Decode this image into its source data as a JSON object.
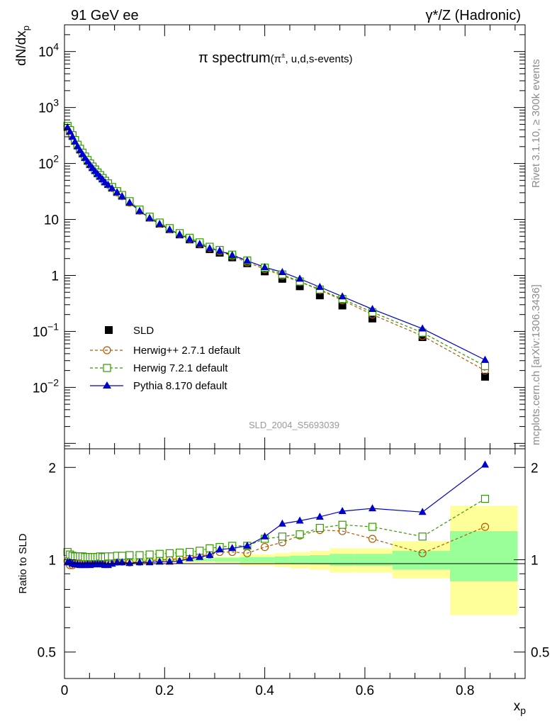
{
  "header": {
    "left": "91 GeV ee",
    "right_prefix": "γ*/Z",
    "right_suffix": "(Hadronic)"
  },
  "side_labels": {
    "rivet": "Rivet 3.1.10, ≥ 300k events",
    "mcplots": "mcplots.cern.ch [arXiv:1306.3436]"
  },
  "plot_title": {
    "main": "π spectrum",
    "sub": "(π±, u,d,s-events)"
  },
  "analysis_id": "SLD_2004_S5693039",
  "colors": {
    "data": "#000000",
    "herwigpp": "#b35900",
    "herwig7": "#339900",
    "pythia": "#0000cc",
    "band_outer": "#ffff99",
    "band_inner": "#99ff99"
  },
  "chart_data": [
    {
      "type": "scatter",
      "panel": "main",
      "ylabel": "dN/dxp",
      "yscale": "log",
      "xlim": [
        0,
        0.92
      ],
      "ylim": [
        0.0008,
        30000
      ],
      "y_ticks": [
        "10^-2",
        "10^-1",
        "1",
        "10",
        "10^2",
        "10^3",
        "10^4"
      ],
      "legend_placement": "lower-left",
      "legend": [
        "SLD",
        "Herwig++ 2.7.1 default",
        "Herwig 7.2.1 default",
        "Pythia 8.170 default"
      ],
      "x": [
        0.006,
        0.011,
        0.016,
        0.021,
        0.026,
        0.031,
        0.036,
        0.041,
        0.046,
        0.051,
        0.056,
        0.061,
        0.066,
        0.071,
        0.076,
        0.081,
        0.087,
        0.095,
        0.105,
        0.115,
        0.13,
        0.15,
        0.17,
        0.19,
        0.21,
        0.23,
        0.25,
        0.27,
        0.29,
        0.31,
        0.335,
        0.365,
        0.4,
        0.435,
        0.47,
        0.51,
        0.555,
        0.615,
        0.715,
        0.84
      ],
      "series": [
        {
          "name": "SLD",
          "values": [
            450,
            380,
            310,
            255,
            210,
            178,
            152,
            130,
            112,
            98,
            86,
            76,
            67,
            60,
            54,
            48,
            43,
            37,
            31,
            26.5,
            20.5,
            14.5,
            10.8,
            8.4,
            6.7,
            5.4,
            4.4,
            3.6,
            2.95,
            2.55,
            2.1,
            1.65,
            1.18,
            0.87,
            0.64,
            0.44,
            0.29,
            0.17,
            0.079,
            0.0155
          ]
        },
        {
          "name": "Herwig++ 2.7.1 default",
          "values": [
            445,
            365,
            298,
            247,
            204,
            173,
            148,
            127,
            109,
            96,
            84,
            74,
            66,
            59,
            53,
            47,
            42,
            36.5,
            30.5,
            26,
            20,
            14.3,
            10.7,
            8.4,
            6.7,
            5.5,
            4.5,
            3.7,
            3.1,
            2.7,
            2.22,
            1.72,
            1.3,
            0.99,
            0.77,
            0.55,
            0.36,
            0.2,
            0.083,
            0.02
          ]
        },
        {
          "name": "Herwig 7.2.1 default",
          "values": [
            470,
            395,
            320,
            262,
            216,
            183,
            156,
            133,
            115,
            100,
            88,
            78,
            69,
            62,
            55,
            49,
            44,
            38,
            32,
            27.3,
            21.2,
            15,
            11.2,
            8.8,
            7,
            5.7,
            4.7,
            3.9,
            3.25,
            2.85,
            2.35,
            1.85,
            1.38,
            1.04,
            0.78,
            0.56,
            0.38,
            0.22,
            0.095,
            0.024
          ]
        },
        {
          "name": "Pythia 8.170 default",
          "values": [
            440,
            370,
            300,
            245,
            202,
            171,
            146,
            125,
            108,
            94,
            83,
            73,
            65,
            58,
            52,
            46,
            41.5,
            36,
            30.5,
            26,
            20,
            14.2,
            10.6,
            8.3,
            6.6,
            5.4,
            4.45,
            3.65,
            3.05,
            2.75,
            2.3,
            1.83,
            1.4,
            1.14,
            0.87,
            0.62,
            0.42,
            0.25,
            0.112,
            0.031
          ]
        }
      ]
    },
    {
      "type": "line",
      "panel": "ratio",
      "ylabel": "Ratio to SLD",
      "xlabel": "xp",
      "xlim": [
        0,
        0.92
      ],
      "ylim": [
        0.41,
        2.3
      ],
      "y_ticks": [
        "0.5",
        "1",
        "2"
      ],
      "x_ticks": [
        "0",
        "0.2",
        "0.4",
        "0.6",
        "0.8"
      ],
      "x": [
        0.006,
        0.011,
        0.016,
        0.021,
        0.026,
        0.031,
        0.036,
        0.041,
        0.046,
        0.051,
        0.056,
        0.061,
        0.066,
        0.071,
        0.076,
        0.081,
        0.087,
        0.095,
        0.105,
        0.115,
        0.13,
        0.15,
        0.17,
        0.19,
        0.21,
        0.23,
        0.25,
        0.27,
        0.29,
        0.31,
        0.335,
        0.365,
        0.4,
        0.435,
        0.47,
        0.51,
        0.555,
        0.615,
        0.715,
        0.84
      ],
      "series": [
        {
          "name": "Herwig++ 2.7.1 default",
          "values": [
            0.99,
            0.96,
            0.96,
            0.97,
            0.97,
            0.97,
            0.97,
            0.975,
            0.975,
            0.98,
            0.98,
            0.975,
            0.985,
            0.985,
            0.985,
            0.98,
            0.985,
            0.99,
            0.985,
            0.985,
            0.98,
            0.985,
            0.99,
            1.0,
            1.0,
            1.01,
            1.02,
            1.03,
            1.04,
            1.06,
            1.06,
            1.05,
            1.1,
            1.14,
            1.2,
            1.25,
            1.24,
            1.17,
            1.05,
            1.28
          ]
        },
        {
          "name": "Herwig 7.2.1 default",
          "values": [
            1.06,
            1.04,
            1.03,
            1.025,
            1.025,
            1.025,
            1.025,
            1.02,
            1.02,
            1.02,
            1.02,
            1.02,
            1.02,
            1.025,
            1.02,
            1.02,
            1.025,
            1.025,
            1.03,
            1.03,
            1.035,
            1.035,
            1.04,
            1.045,
            1.05,
            1.055,
            1.06,
            1.07,
            1.09,
            1.1,
            1.11,
            1.11,
            1.17,
            1.19,
            1.21,
            1.27,
            1.3,
            1.28,
            1.19,
            1.58
          ]
        },
        {
          "name": "Pythia 8.170 default",
          "values": [
            0.98,
            0.98,
            0.97,
            0.965,
            0.965,
            0.96,
            0.96,
            0.96,
            0.965,
            0.96,
            0.965,
            0.965,
            0.965,
            0.965,
            0.965,
            0.96,
            0.96,
            0.97,
            0.98,
            0.98,
            0.975,
            0.98,
            0.98,
            0.985,
            0.985,
            0.99,
            1.01,
            1.02,
            1.035,
            1.08,
            1.09,
            1.11,
            1.19,
            1.31,
            1.34,
            1.38,
            1.44,
            1.47,
            1.43,
            2.04
          ]
        }
      ],
      "ratio_bands": [
        {
          "x0": 0.0,
          "x1": 0.24,
          "outer": [
            0.985,
            1.015
          ],
          "inner": [
            0.993,
            1.007
          ]
        },
        {
          "x0": 0.24,
          "x1": 0.3,
          "outer": [
            0.98,
            1.02
          ],
          "inner": [
            0.99,
            1.01
          ]
        },
        {
          "x0": 0.3,
          "x1": 0.35,
          "outer": [
            0.975,
            1.025
          ],
          "inner": [
            0.985,
            1.015
          ]
        },
        {
          "x0": 0.35,
          "x1": 0.42,
          "outer": [
            0.96,
            1.04
          ],
          "inner": [
            0.98,
            1.02
          ]
        },
        {
          "x0": 0.42,
          "x1": 0.45,
          "outer": [
            0.95,
            1.05
          ],
          "inner": [
            0.975,
            1.025
          ]
        },
        {
          "x0": 0.45,
          "x1": 0.49,
          "outer": [
            0.94,
            1.06
          ],
          "inner": [
            0.97,
            1.03
          ]
        },
        {
          "x0": 0.49,
          "x1": 0.53,
          "outer": [
            0.93,
            1.07
          ],
          "inner": [
            0.965,
            1.035
          ]
        },
        {
          "x0": 0.53,
          "x1": 0.58,
          "outer": [
            0.91,
            1.09
          ],
          "inner": [
            0.955,
            1.045
          ]
        },
        {
          "x0": 0.58,
          "x1": 0.655,
          "outer": [
            0.91,
            1.09
          ],
          "inner": [
            0.955,
            1.045
          ]
        },
        {
          "x0": 0.655,
          "x1": 0.77,
          "outer": [
            0.87,
            1.15
          ],
          "inner": [
            0.93,
            1.07
          ]
        },
        {
          "x0": 0.77,
          "x1": 0.905,
          "outer": [
            0.66,
            1.5
          ],
          "inner": [
            0.85,
            1.24
          ]
        }
      ]
    }
  ]
}
